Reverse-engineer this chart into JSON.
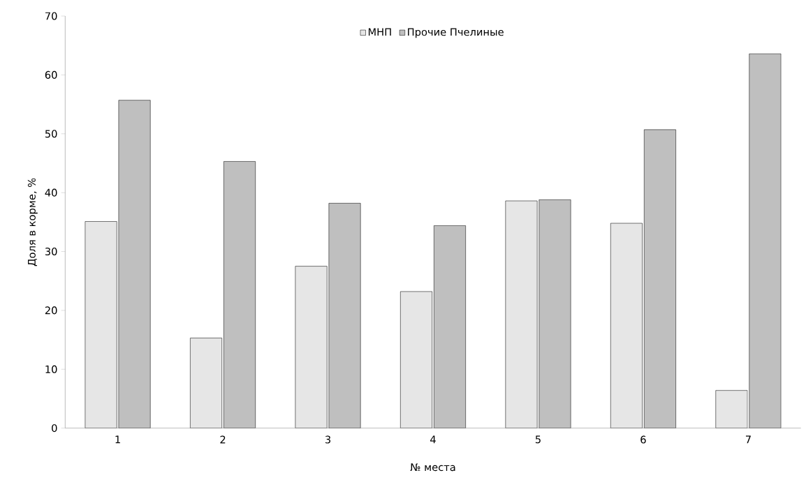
{
  "chart_data": {
    "type": "bar",
    "xlabel": "№ места",
    "ylabel": "Доля в корме, %",
    "categories": [
      "1",
      "2",
      "3",
      "4",
      "5",
      "6",
      "7"
    ],
    "series": [
      {
        "name": "МНП",
        "color": "#e6e6e6",
        "values": [
          35.1,
          15.3,
          27.5,
          23.2,
          38.6,
          34.8,
          6.4
        ]
      },
      {
        "name": "Прочие Пчелиные",
        "color": "#bfbfbf",
        "values": [
          55.7,
          45.3,
          38.2,
          34.4,
          38.8,
          50.7,
          63.6
        ]
      }
    ],
    "ylim": [
      0,
      70
    ],
    "yticks": [
      0,
      10,
      20,
      30,
      40,
      50,
      60,
      70
    ],
    "legend": "top",
    "grid": false
  }
}
